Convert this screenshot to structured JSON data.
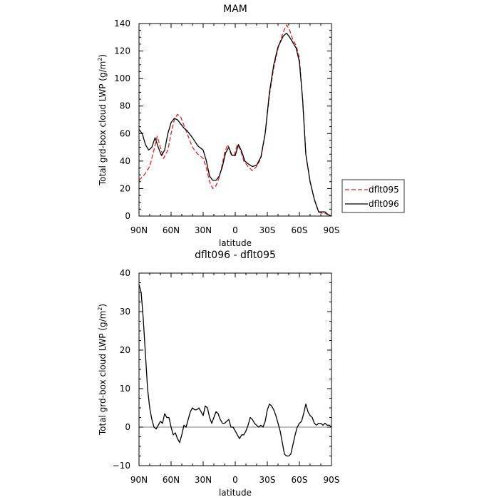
{
  "chart_data": [
    {
      "type": "line",
      "title": "MAM",
      "xlabel": "latitude",
      "ylabel_main": "Total grd-box cloud LWP (g/m",
      "ylabel_sup": "2",
      "ylabel_end": ")",
      "xlim": [
        90,
        -90
      ],
      "ylim": [
        0,
        140
      ],
      "xticks": [
        90,
        60,
        30,
        0,
        -30,
        -60,
        -90
      ],
      "xtick_labels": [
        "90N",
        "60N",
        "30N",
        "0",
        "30S",
        "60S",
        "90S"
      ],
      "yticks": [
        0,
        20,
        40,
        60,
        80,
        100,
        120,
        140
      ],
      "ytick_labels": [
        "0",
        "20",
        "40",
        "60",
        "80",
        "100",
        "120",
        "140"
      ],
      "legend": "right",
      "series": [
        {
          "name": "dflt095",
          "color": "#e8201c",
          "dash": "dashed",
          "x": [
            90,
            85,
            80,
            76,
            73,
            70,
            67,
            63,
            60,
            57,
            54,
            51,
            48,
            45,
            40,
            35,
            30,
            27,
            24,
            21,
            18,
            15,
            12,
            10,
            7,
            4,
            1,
            -2,
            -5,
            -8,
            -12,
            -16,
            -20,
            -24,
            -28,
            -32,
            -36,
            -40,
            -45,
            -48,
            -51,
            -54,
            -57,
            -60,
            -63,
            -66,
            -70,
            -74,
            -78,
            -81,
            -84,
            -87,
            -90
          ],
          "y": [
            26,
            30,
            36,
            48,
            58,
            50,
            42,
            48,
            60,
            70,
            74,
            72,
            66,
            60,
            50,
            45,
            42,
            35,
            25,
            20,
            22,
            28,
            38,
            46,
            52,
            45,
            44,
            52,
            48,
            40,
            36,
            33,
            36,
            42,
            60,
            88,
            108,
            122,
            134,
            139,
            135,
            128,
            124,
            115,
            85,
            45,
            25,
            12,
            3,
            2,
            2,
            1,
            0
          ]
        },
        {
          "name": "dflt096",
          "color": "#000000",
          "dash": "solid",
          "x": [
            90,
            87,
            84,
            81,
            78,
            75,
            72,
            69,
            66,
            63,
            60,
            57,
            54,
            51,
            48,
            45,
            40,
            35,
            30,
            27,
            24,
            21,
            18,
            15,
            12,
            9,
            6,
            3,
            0,
            -3,
            -6,
            -9,
            -12,
            -16,
            -20,
            -24,
            -28,
            -32,
            -36,
            -40,
            -45,
            -48,
            -51,
            -54,
            -57,
            -60,
            -63,
            -66,
            -70,
            -74,
            -78,
            -81,
            -84,
            -87,
            -90
          ],
          "y": [
            63,
            60,
            52,
            48,
            50,
            57,
            50,
            44,
            48,
            60,
            68,
            71,
            70,
            67,
            64,
            62,
            57,
            51,
            48,
            40,
            29,
            26,
            26,
            29,
            36,
            46,
            50,
            44,
            44,
            52,
            47,
            40,
            38,
            36,
            37,
            43,
            60,
            90,
            110,
            123,
            131,
            133,
            130,
            126,
            122,
            112,
            85,
            45,
            25,
            12,
            3,
            3,
            3,
            1,
            0
          ]
        }
      ]
    },
    {
      "type": "line",
      "title": "dflt096 - dflt095",
      "xlabel": "latitude",
      "ylabel_main": "Total grd-box cloud LWP (g/m",
      "ylabel_sup": "2",
      "ylabel_end": ")",
      "xlim": [
        90,
        -90
      ],
      "ylim": [
        -10,
        40
      ],
      "xticks": [
        90,
        60,
        30,
        0,
        -30,
        -60,
        -90
      ],
      "xtick_labels": [
        "90N",
        "60N",
        "30N",
        "0",
        "30S",
        "60S",
        "90S"
      ],
      "yticks": [
        -10,
        0,
        10,
        20,
        30,
        40
      ],
      "ytick_labels": [
        "−10",
        "0",
        "10",
        "20",
        "30",
        "40"
      ],
      "series": [
        {
          "color": "#000000",
          "dash": "solid",
          "x": [
            90,
            88,
            86,
            84,
            82,
            80,
            78,
            76,
            74,
            72,
            70,
            68,
            66,
            64,
            62,
            60,
            58,
            56,
            54,
            52,
            50,
            48,
            46,
            44,
            42,
            40,
            38,
            36,
            34,
            32,
            30,
            28,
            26,
            24,
            22,
            20,
            18,
            16,
            14,
            12,
            10,
            8,
            6,
            4,
            2,
            0,
            -2,
            -4,
            -6,
            -8,
            -10,
            -12,
            -14,
            -16,
            -18,
            -20,
            -22,
            -24,
            -26,
            -28,
            -30,
            -32,
            -34,
            -36,
            -38,
            -40,
            -42,
            -44,
            -46,
            -48,
            -50,
            -52,
            -54,
            -56,
            -58,
            -60,
            -62,
            -64,
            -66,
            -68,
            -70,
            -72,
            -74,
            -76,
            -78,
            -80,
            -82,
            -84,
            -86,
            -88,
            -90
          ],
          "y": [
            37,
            35,
            28,
            19,
            10,
            5,
            2,
            0,
            -0.5,
            0.5,
            1.5,
            1,
            3.5,
            2.5,
            2.5,
            0,
            -2,
            -1.5,
            -3,
            -4,
            -2,
            0.5,
            0,
            2,
            4,
            5,
            4.5,
            4.5,
            5,
            4,
            3,
            5.5,
            5,
            2.5,
            1,
            2.5,
            4,
            3.5,
            2,
            1,
            1,
            1.5,
            2,
            0,
            0,
            -1,
            -2,
            -3,
            -2,
            -2,
            -1,
            0.5,
            2.5,
            2,
            1,
            0.5,
            0,
            0.5,
            0,
            1.5,
            4.5,
            6,
            5.5,
            4.5,
            3,
            1,
            -1,
            -4,
            -7,
            -7.5,
            -7.5,
            -7,
            -4.5,
            -2,
            0,
            1,
            1.5,
            3.5,
            6,
            4,
            3,
            2.5,
            1,
            0.5,
            1,
            1,
            0.5,
            1,
            0.5,
            0.5,
            0
          ]
        }
      ]
    }
  ]
}
